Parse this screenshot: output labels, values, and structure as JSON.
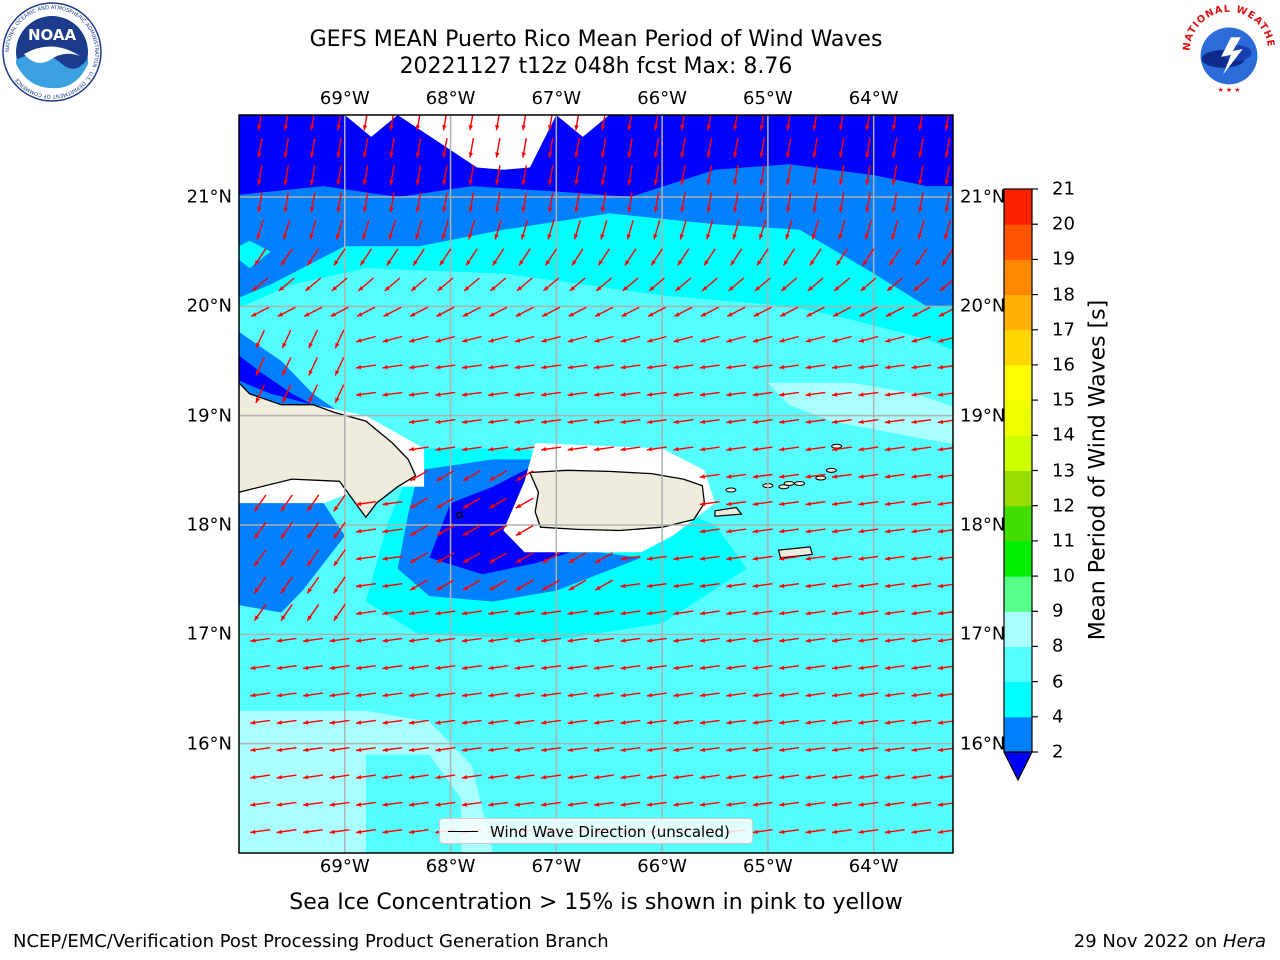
{
  "title_line1": "GEFS MEAN Puerto Rico Mean Period of Wind Waves",
  "title_line2": "20221127 t12z 048h fcst   Max: 8.76",
  "subtitle": "Sea Ice Concentration > 15% is shown in pink to yellow",
  "footer_left": "NCEP/EMC/Verification Post Processing Product Generation Branch",
  "footer_right_prefix": "29 Nov 2022 on ",
  "footer_right_host": "Hera",
  "legend_label": "Wind Wave Direction (unscaled)",
  "noaa_logo": {
    "text": "NOAA",
    "ring_text": "NATIONAL OCEANIC AND ATMOSPHERIC ADMINISTRATION · U.S. DEPARTMENT OF COMMERCE"
  },
  "nws_logo": {
    "ring_text": "NATIONAL WEATHER SERVICE"
  },
  "map": {
    "lon_labels": [
      "69°W",
      "68°W",
      "67°W",
      "66°W",
      "65°W",
      "64°W"
    ],
    "lon_values": [
      -69,
      -68,
      -67,
      -66,
      -65,
      -64
    ],
    "lat_labels": [
      "21°N",
      "20°N",
      "19°N",
      "18°N",
      "17°N",
      "16°N"
    ],
    "lat_values": [
      21,
      20,
      19,
      18,
      17,
      16
    ],
    "lon_range": [
      -70.0,
      -63.25
    ],
    "lat_range": [
      15.0,
      21.75
    ],
    "colors": {
      "deep_blue": "#0000ff",
      "mid_blue": "#0080ff",
      "cyan": "#00ffff",
      "light_cyan": "#55ffff",
      "pale_cyan": "#aaffff",
      "land": "#eeecdc",
      "arrow": "#ff0000",
      "grid": "#b0b0b0"
    }
  },
  "colorbar": {
    "label": "Mean Period of Wind Waves [s]",
    "ticks": [
      "2",
      "4",
      "6",
      "8",
      "9",
      "10",
      "11",
      "12",
      "13",
      "14",
      "15",
      "16",
      "17",
      "18",
      "19",
      "20",
      "21"
    ],
    "colors": [
      "#0080ff",
      "#00ffff",
      "#55ffff",
      "#aaffff",
      "#55ff88",
      "#00ee00",
      "#44dd00",
      "#99dd00",
      "#ccff00",
      "#eeff00",
      "#ffff00",
      "#ffd700",
      "#ffb000",
      "#ff8800",
      "#ff5500",
      "#ff2200",
      "#ff0000"
    ],
    "extend_min_color": "#0000ff"
  },
  "chart_data": {
    "type": "heatmap",
    "title": "GEFS MEAN Puerto Rico Mean Period of Wind Waves",
    "subtitle": "20221127 t12z 048h fcst   Max: 8.76",
    "variable": "Mean Period of Wind Waves [s]",
    "max": 8.76,
    "levels": [
      2,
      4,
      6,
      8,
      9,
      10,
      11,
      12,
      13,
      14,
      15,
      16,
      17,
      18,
      19,
      20,
      21
    ],
    "wind_wave_direction": "predominantly westward, turning south-southwest in the north",
    "region": {
      "lon": [
        -70.0,
        -63.25
      ],
      "lat": [
        15.0,
        21.75
      ]
    }
  }
}
